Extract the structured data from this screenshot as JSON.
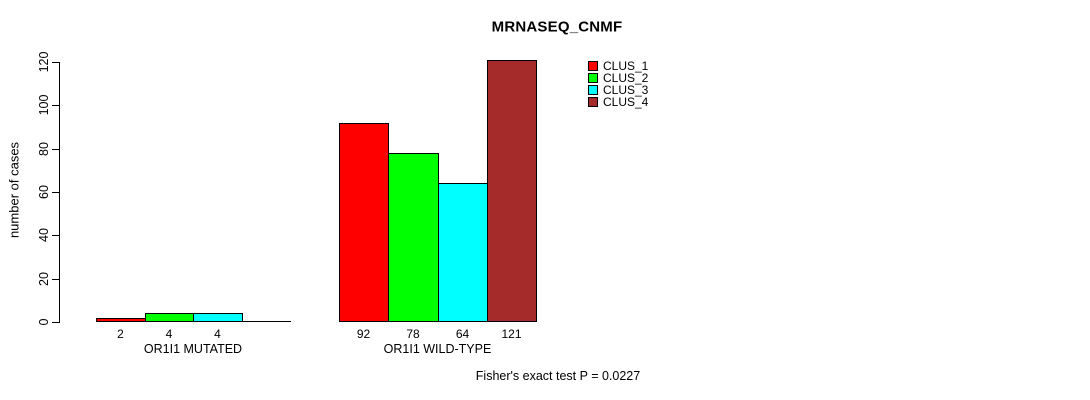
{
  "page": {
    "background": "#FFFFFF"
  },
  "chart_data": {
    "type": "bar",
    "title": "MRNASEQ_CNMF",
    "ylabel": "number of cases",
    "xlabel": "",
    "categories": [
      "OR1I1 MUTATED",
      "OR1I1 WILD-TYPE"
    ],
    "series": [
      {
        "name": "CLUS_1",
        "color": "#FF0000",
        "values": [
          2,
          92
        ]
      },
      {
        "name": "CLUS_2",
        "color": "#00FF00",
        "values": [
          4,
          78
        ]
      },
      {
        "name": "CLUS_3",
        "color": "#00FFFF",
        "values": [
          4,
          64
        ]
      },
      {
        "name": "CLUS_4",
        "color": "#A52A2A",
        "values": [
          0,
          121
        ]
      }
    ],
    "bar_value_labels": [
      [
        "2",
        "4",
        "4",
        ""
      ],
      [
        "92",
        "78",
        "64",
        "121"
      ]
    ],
    "ylim": [
      0,
      120
    ],
    "y_ticks": [
      0,
      20,
      40,
      60,
      80,
      100,
      120
    ],
    "grid": false,
    "legend_position": "top-right",
    "legend_entries": [
      "CLUS_1",
      "CLUS_2",
      "CLUS_3",
      "CLUS_4"
    ],
    "annotation": "Fisher's exact test P = 0.0227",
    "bar_border_color": "#000000",
    "axis_color": "#000000"
  }
}
